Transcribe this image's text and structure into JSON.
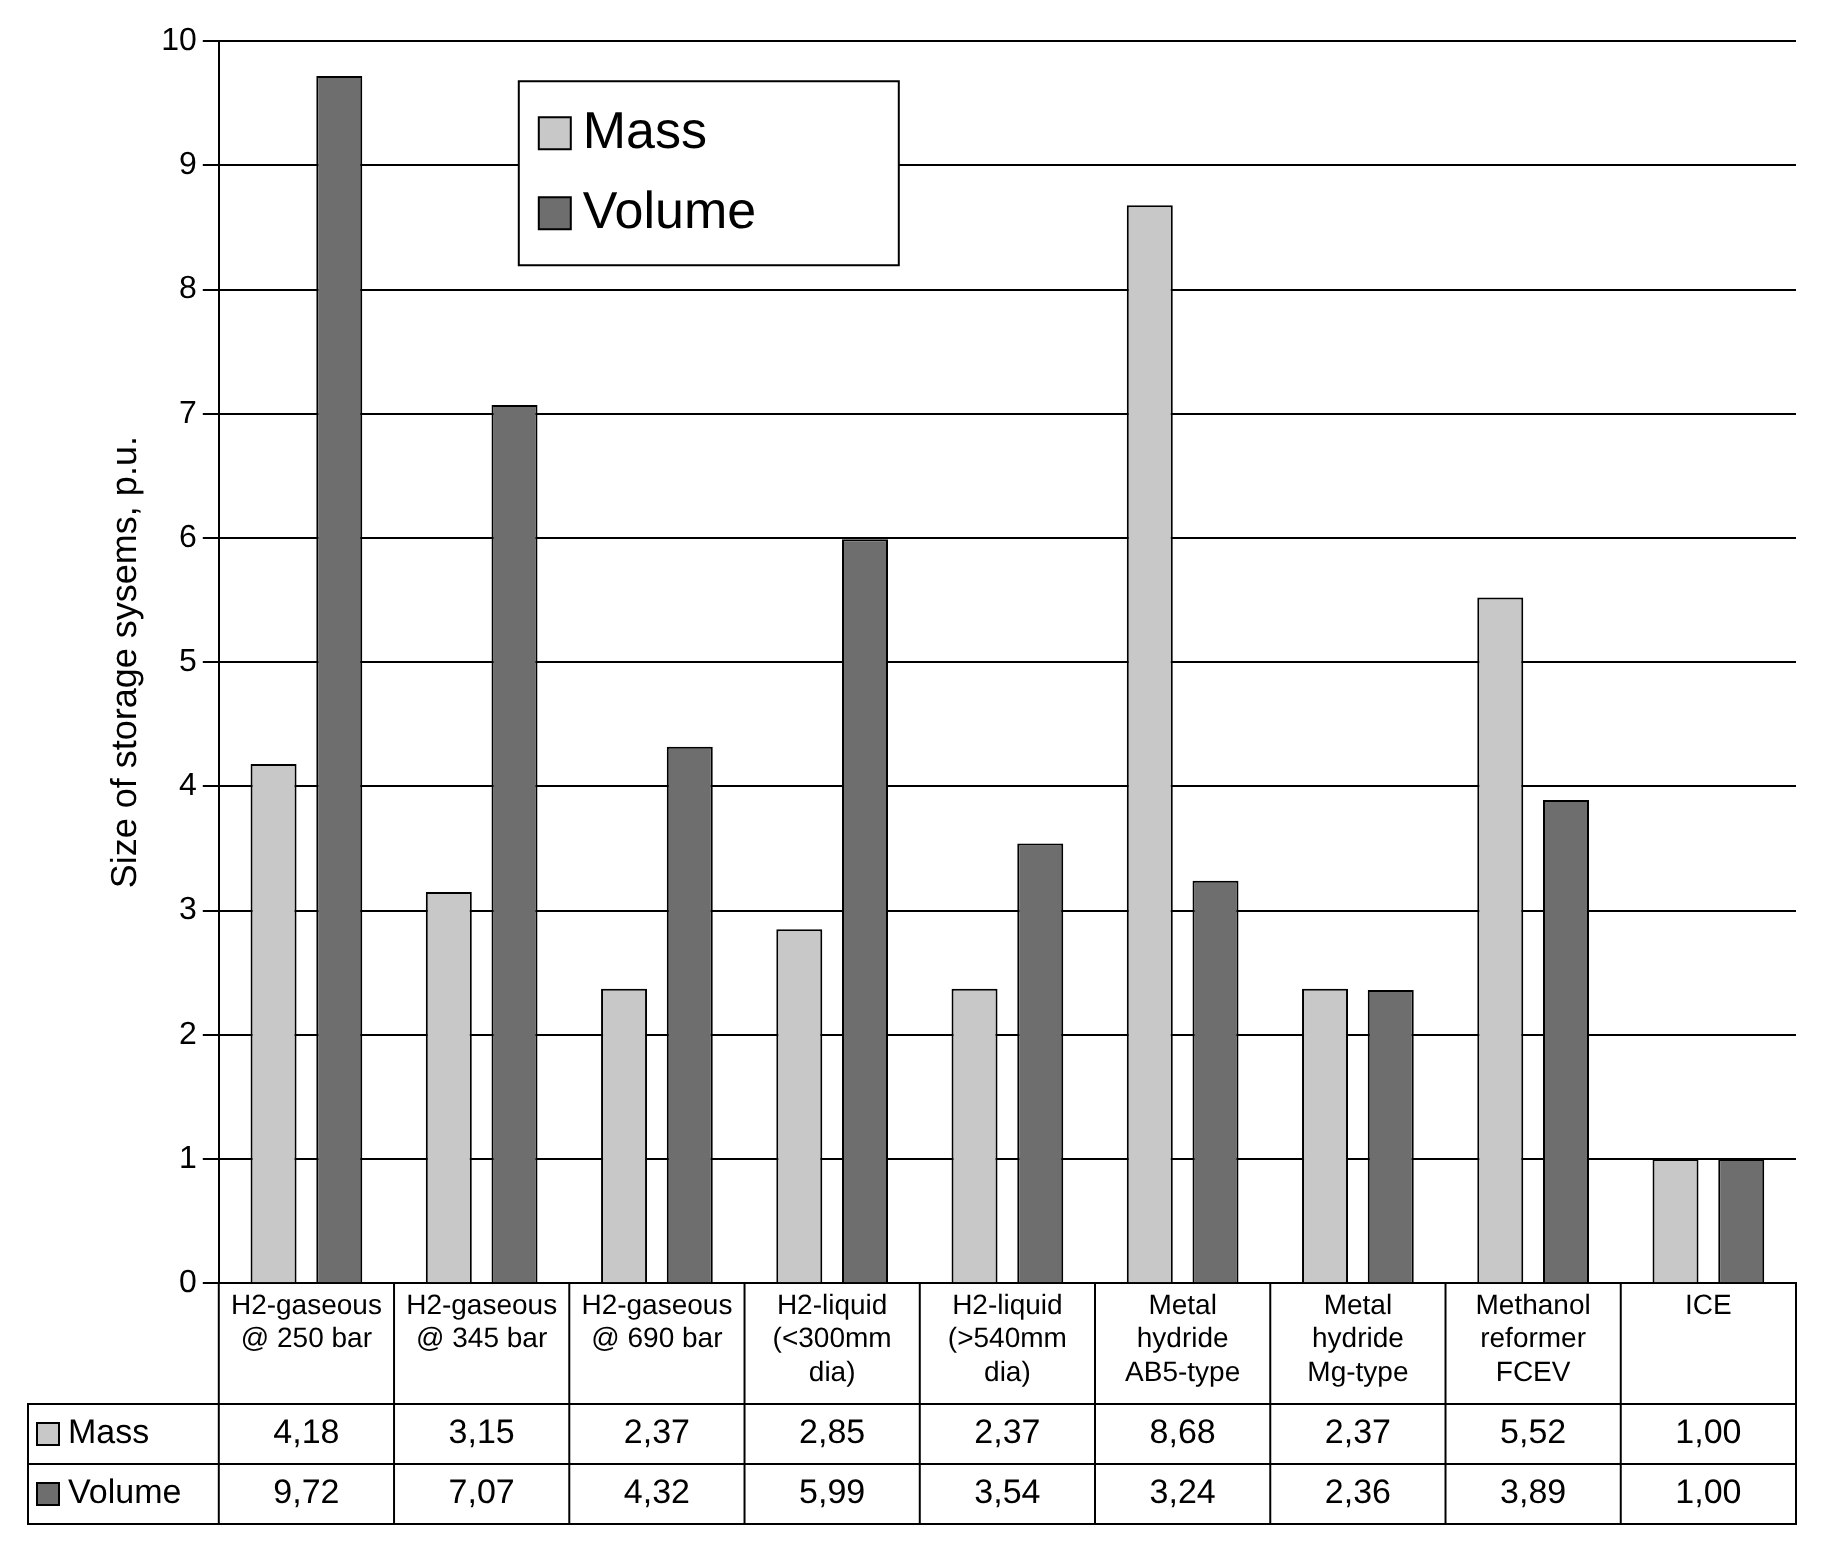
{
  "chart_data": {
    "type": "bar",
    "ylabel": "Size of storage sysems, p.u.",
    "categories": [
      "H2-gaseous @ 250 bar",
      "H2-gaseous @ 345 bar",
      "H2-gaseous @ 690 bar",
      "H2-liquid (<300mm dia)",
      "H2-liquid (>540mm dia)",
      "Metal hydride AB5-type",
      "Metal hydride Mg-type",
      "Methanol reformer FCEV",
      "ICE"
    ],
    "series": [
      {
        "name": "Mass",
        "color": "#c8c8c8",
        "values": [
          4.18,
          3.15,
          2.37,
          2.85,
          2.37,
          8.68,
          2.37,
          5.52,
          1.0
        ],
        "value_labels": [
          "4,18",
          "3,15",
          "2,37",
          "2,85",
          "2,37",
          "8,68",
          "2,37",
          "5,52",
          "1,00"
        ]
      },
      {
        "name": "Volume",
        "color": "#6e6e6e",
        "values": [
          9.72,
          7.07,
          4.32,
          5.99,
          3.54,
          3.24,
          2.36,
          3.89,
          1.0
        ],
        "value_labels": [
          "9,72",
          "7,07",
          "4,32",
          "5,99",
          "3,54",
          "3,24",
          "2,36",
          "3,89",
          "1,00"
        ]
      }
    ],
    "ylim": [
      0,
      10
    ],
    "yticks": [
      0,
      1,
      2,
      3,
      4,
      5,
      6,
      7,
      8,
      9,
      10
    ],
    "grid": "y",
    "legend": "top left"
  }
}
